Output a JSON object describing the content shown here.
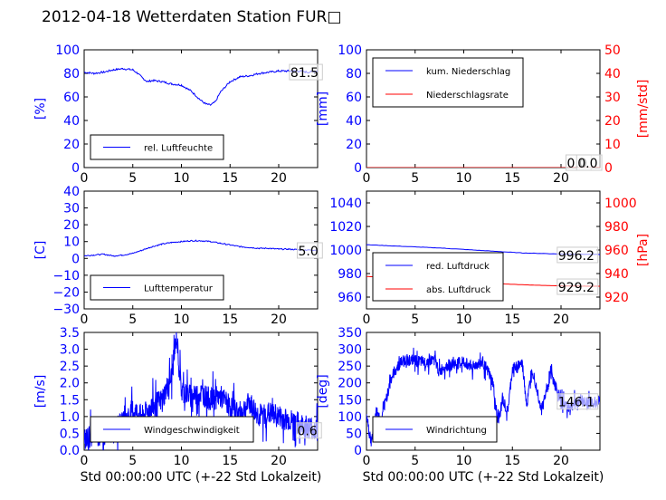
{
  "figure": {
    "title": "2012-04-18 Wetterdaten Station FUR□"
  },
  "colors": {
    "blue": "#0000ff",
    "red": "#ff0000",
    "black": "#000000"
  },
  "chart_data": [
    {
      "id": "humidity",
      "type": "line",
      "xlim": [
        0,
        24
      ],
      "ylim": [
        0,
        100
      ],
      "xticks": [
        "0",
        "5",
        "10",
        "15",
        "20"
      ],
      "yticks": [
        "0",
        "20",
        "40",
        "60",
        "80",
        "100"
      ],
      "ylabel": "[%]",
      "ylabel_color": "#0000ff",
      "series": [
        {
          "name": "rel. Luftfeuchte",
          "color": "#0000ff",
          "x": [
            0,
            1,
            2,
            3,
            4,
            5,
            5.5,
            6,
            6.5,
            7,
            8,
            9,
            10,
            11,
            12,
            12.5,
            13,
            13.5,
            14,
            15,
            16,
            17,
            18,
            19,
            20,
            21,
            22,
            23,
            24
          ],
          "y": [
            81,
            80,
            81,
            83,
            84,
            83,
            80,
            76,
            73,
            74,
            73,
            71,
            70,
            65,
            57,
            54,
            53,
            56,
            64,
            73,
            77,
            78,
            80,
            81,
            82,
            82,
            82,
            81,
            82
          ]
        }
      ],
      "annotation": "81.5",
      "legend": "lower center"
    },
    {
      "id": "precip",
      "type": "line",
      "xlim": [
        0,
        24
      ],
      "ylim": [
        0,
        100
      ],
      "y2lim": [
        0,
        50
      ],
      "xticks": [
        "0",
        "5",
        "10",
        "15",
        "20"
      ],
      "yticks": [
        "0",
        "20",
        "40",
        "60",
        "80",
        "100"
      ],
      "y2ticks": [
        "0",
        "10",
        "20",
        "30",
        "40",
        "50"
      ],
      "ylabel": "[mm]",
      "ylabel_color": "#0000ff",
      "y2label": "[mm/std]",
      "y2label_color": "#ff0000",
      "series": [
        {
          "name": "kum. Niederschlag",
          "color": "#0000ff",
          "x": [
            0,
            24
          ],
          "y": [
            0,
            0
          ]
        },
        {
          "name": "Niederschlagsrate",
          "color": "#ff0000",
          "axis": "right",
          "x": [
            0,
            24
          ],
          "y": [
            0,
            0
          ]
        }
      ],
      "annotations": [
        "0.0",
        "0.0"
      ],
      "legend": "upper left"
    },
    {
      "id": "temperature",
      "type": "line",
      "xlim": [
        0,
        24
      ],
      "ylim": [
        -30,
        40
      ],
      "xticks": [
        "0",
        "5",
        "10",
        "15",
        "20"
      ],
      "yticks": [
        "−30",
        "−20",
        "−10",
        "0",
        "10",
        "20",
        "30",
        "40"
      ],
      "ylabel": "[C]",
      "ylabel_color": "#0000ff",
      "series": [
        {
          "name": "Lufttemperatur",
          "color": "#0000ff",
          "x": [
            0,
            1,
            2,
            3,
            4,
            5,
            6,
            7,
            8,
            9,
            10,
            11,
            12,
            13,
            14,
            15,
            16,
            17,
            18,
            19,
            20,
            21,
            22,
            23,
            24
          ],
          "y": [
            1.5,
            2,
            2.5,
            1.5,
            2,
            3,
            5,
            7,
            8.5,
            9.5,
            10,
            10.5,
            10.5,
            10,
            9,
            8,
            7,
            6.5,
            6,
            6,
            5.5,
            5.5,
            5.2,
            5,
            5
          ]
        }
      ],
      "annotation": "5.0",
      "legend": "lower center"
    },
    {
      "id": "pressure",
      "type": "line",
      "xlim": [
        0,
        24
      ],
      "ylim": [
        950,
        1050
      ],
      "y2lim": [
        910,
        1010
      ],
      "xticks": [
        "0",
        "5",
        "10",
        "15",
        "20"
      ],
      "yticks": [
        "960",
        "980",
        "1000",
        "1020",
        "1040"
      ],
      "y2ticks": [
        "920",
        "940",
        "960",
        "980",
        "1000"
      ],
      "ylabel_color": "#0000ff",
      "y2label": "[hPa]",
      "y2label_color": "#ff0000",
      "series": [
        {
          "name": "red. Luftdruck",
          "color": "#0000ff",
          "x": [
            0,
            4,
            8,
            12,
            16,
            20,
            24
          ],
          "y": [
            1004.5,
            1003,
            1001.5,
            999.5,
            997.5,
            996.6,
            996.2
          ]
        },
        {
          "name": "abs. Luftdruck",
          "color": "#ff0000",
          "axis": "right",
          "x": [
            0,
            4,
            8,
            12,
            16,
            20,
            24
          ],
          "y": [
            937.5,
            936,
            934,
            932,
            930.5,
            929.5,
            929.2
          ]
        }
      ],
      "annotations": [
        "996.2",
        "929.2"
      ],
      "legend": "lower left"
    },
    {
      "id": "wind-speed",
      "type": "line",
      "xlim": [
        0,
        24
      ],
      "ylim": [
        0,
        3.5
      ],
      "xticks": [
        "0",
        "5",
        "10",
        "15",
        "20"
      ],
      "yticks": [
        "0.0",
        "0.5",
        "1.0",
        "1.5",
        "2.0",
        "2.5",
        "3.0",
        "3.5"
      ],
      "ylabel": "[m/s]",
      "ylabel_color": "#0000ff",
      "xlabel": "Std 00:00:00 UTC (+-22 Std Lokalzeit)",
      "series": [
        {
          "name": "Windgeschwindigkeit",
          "color": "#0000ff",
          "x": [
            0,
            1,
            2,
            3,
            4,
            5,
            6,
            7,
            8,
            9,
            9.5,
            10,
            11,
            12,
            13,
            14,
            15,
            16,
            17,
            18,
            19,
            20,
            21,
            22,
            23,
            24
          ],
          "y": [
            0.3,
            0.5,
            0.4,
            0.6,
            0.8,
            1.2,
            1.0,
            1.3,
            1.5,
            2.2,
            3.4,
            1.8,
            1.6,
            1.7,
            1.5,
            1.6,
            1.3,
            1.1,
            1.4,
            1.0,
            1.1,
            1.0,
            0.9,
            0.8,
            0.7,
            0.6
          ]
        }
      ],
      "annotation": "0.6",
      "legend": "lower center"
    },
    {
      "id": "wind-direction",
      "type": "line",
      "xlim": [
        0,
        24
      ],
      "ylim": [
        0,
        350
      ],
      "xticks": [
        "0",
        "5",
        "10",
        "15",
        "20"
      ],
      "yticks": [
        "0",
        "50",
        "100",
        "150",
        "200",
        "250",
        "300",
        "350"
      ],
      "ylabel": "[deg]",
      "ylabel_color": "#0000ff",
      "xlabel": "Std 00:00:00 UTC (+-22 Std Lokalzeit)",
      "series": [
        {
          "name": "Windrichtung",
          "color": "#0000ff",
          "x": [
            0,
            0.5,
            1,
            1.5,
            2,
            2.5,
            3,
            3.5,
            4,
            5,
            6,
            7,
            7.5,
            8,
            9,
            10,
            11,
            12,
            13,
            13.5,
            14,
            14.5,
            15,
            16,
            16.5,
            17,
            18,
            19,
            20,
            21,
            22,
            23,
            24
          ],
          "y": [
            100,
            20,
            120,
            80,
            150,
            210,
            240,
            260,
            270,
            265,
            260,
            270,
            230,
            250,
            255,
            260,
            250,
            262,
            200,
            80,
            150,
            110,
            240,
            260,
            130,
            250,
            120,
            230,
            140,
            130,
            150,
            140,
            146
          ]
        }
      ],
      "annotation": "146.1",
      "legend": "lower left"
    }
  ]
}
